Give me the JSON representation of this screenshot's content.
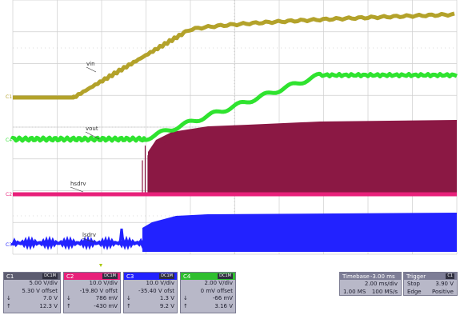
{
  "colors": {
    "c1": "#b3a22a",
    "c2": "#e8207a",
    "c3": "#2222ff",
    "c4": "#2fe32f",
    "c2_fill": "#8b1844",
    "panel_bg": "#b8b8c8",
    "panel_header_c1": "#5c5c70",
    "panel_header_c2": "#e8207a",
    "panel_header_c3": "#2222ff",
    "panel_header_c4": "#2fbf2f"
  },
  "traces": {
    "vin": {
      "label": "vin",
      "marker": "C1"
    },
    "vout": {
      "label": "vout",
      "marker": "C4"
    },
    "hsdrv": {
      "label": "hsdrv",
      "marker": "C2"
    },
    "lsdrv": {
      "label": "lsdrv",
      "marker": "C3"
    }
  },
  "trigger_marker_icon": "triangle-marker",
  "channels": [
    {
      "name": "C1",
      "badge": "DC1M",
      "vdiv": "5.00 V/div",
      "offset": "5.30 V offset",
      "max_sym": "↓",
      "max": "7.0 V",
      "min_sym": "↑",
      "min": "12.3 V"
    },
    {
      "name": "C2",
      "badge": "DC1M",
      "vdiv": "10.0 V/div",
      "offset": "-19.80 V offst",
      "max_sym": "↓",
      "max": "786 mV",
      "min_sym": "↑",
      "min": "-430 mV"
    },
    {
      "name": "C3",
      "badge": "DC1M",
      "vdiv": "10.0 V/div",
      "offset": "-35.40 V ofst",
      "max_sym": "↓",
      "max": "1.3 V",
      "min_sym": "↑",
      "min": "9.2 V"
    },
    {
      "name": "C4",
      "badge": "DC1M",
      "vdiv": "2.00 V/div",
      "offset": "0 mV offset",
      "max_sym": "↓",
      "max": "-66 mV",
      "min_sym": "↑",
      "min": "3.16 V"
    }
  ],
  "timebase": {
    "title": "Timebase",
    "delay": "-3.00 ms",
    "rate": "2.00 ms/div",
    "samples": "1.00 MS",
    "sample_rate": "100 MS/s"
  },
  "trigger": {
    "title": "Trigger",
    "badge": "C1",
    "mode": "Stop",
    "level": "3.90 V",
    "type": "Edge",
    "slope": "Positive"
  }
}
